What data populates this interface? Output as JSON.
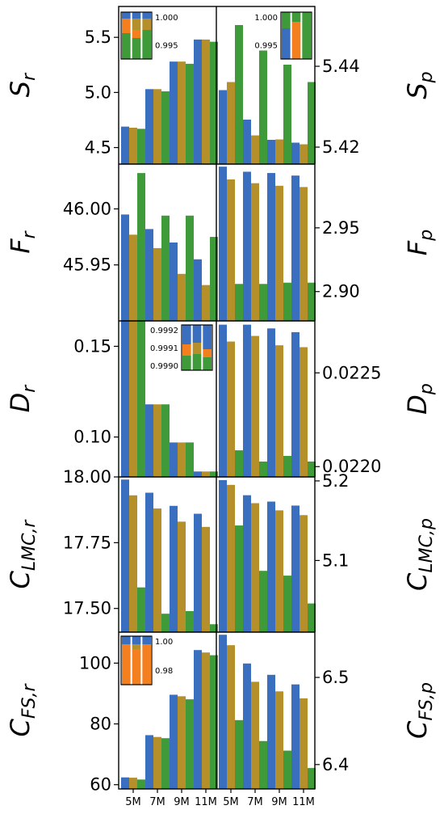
{
  "colors": {
    "blue": "#3a6fbf",
    "orange": "#f37f1f",
    "green": "#3f9a3a",
    "olive": "#b5902a"
  },
  "chart_data": {
    "type": "bar",
    "categories": [
      "5M",
      "7M",
      "9M",
      "11M"
    ],
    "rows": [
      {
        "left": {
          "label": "S_r",
          "ylim": [
            4.35,
            5.78
          ],
          "ticks": [
            "4.5",
            "5.0",
            "5.5"
          ],
          "tick_values": [
            4.5,
            5.0,
            5.5
          ],
          "values": [
            [
              4.69,
              4.68,
              4.67
            ],
            [
              5.03,
              5.03,
              5.01
            ],
            [
              5.28,
              5.28,
              5.26
            ],
            [
              5.48,
              5.48,
              5.46
            ]
          ],
          "inset": {
            "ticks": [
              "1.000",
              "0.995"
            ],
            "bars": [
              [
                "#3a6fbf",
                "#f37f1f",
                "#3f9a3a"
              ],
              [
                "#3a6fbf",
                "#f37f1f",
                "#3f9a3a"
              ],
              [
                "#3a6fbf",
                "#f37f1f",
                "#3f9a3a"
              ]
            ]
          }
        },
        "right": {
          "label": "S_p",
          "ylim": [
            5.4158,
            5.4548
          ],
          "ticks": [
            "5.42",
            "5.44"
          ],
          "tick_values": [
            5.42,
            5.44
          ],
          "values": [
            [
              5.4341,
              5.4361,
              5.4502
            ],
            [
              5.4268,
              5.4229,
              5.4439
            ],
            [
              5.4218,
              5.4219,
              5.4404
            ],
            [
              5.4211,
              5.4207,
              5.4361
            ]
          ],
          "inset": {
            "ticks": [
              "1.000",
              "0.995"
            ]
          }
        }
      },
      {
        "left": {
          "label": "F_r",
          "ylim": [
            45.9,
            46.04
          ],
          "ticks": [
            "45.95",
            "46.00"
          ],
          "tick_values": [
            45.95,
            46.0
          ],
          "values": [
            [
              45.995,
              45.977,
              46.032
            ],
            [
              45.982,
              45.965,
              45.994
            ],
            [
              45.97,
              45.942,
              45.994
            ],
            [
              45.955,
              45.932,
              45.975
            ]
          ]
        },
        "right": {
          "label": "F_p",
          "ylim": [
            2.877,
            3.0
          ],
          "ticks": [
            "2.90",
            "2.95"
          ],
          "tick_values": [
            2.9,
            2.95
          ],
          "values": [
            [
              2.998,
              2.988,
              2.906
            ],
            [
              2.994,
              2.985,
              2.906
            ],
            [
              2.993,
              2.983,
              2.907
            ],
            [
              2.991,
              2.982,
              2.907
            ]
          ]
        }
      },
      {
        "left": {
          "label": "D_r",
          "ylim": [
            0.078,
            0.164
          ],
          "ticks": [
            "0.10",
            "0.15"
          ],
          "tick_values": [
            0.1,
            0.15
          ],
          "values": [
            [
              0.164,
              0.164,
              0.164
            ],
            [
              0.118,
              0.118,
              0.118
            ],
            [
              0.097,
              0.097,
              0.097
            ],
            [
              0.081,
              0.081,
              0.081
            ]
          ],
          "inset": {
            "ticks": [
              "0.9992",
              "0.9991",
              "0.9990"
            ]
          }
        },
        "right": {
          "label": "D_p",
          "ylim": [
            0.021945,
            0.022777
          ],
          "ticks": [
            "0.0220",
            "0.0225"
          ],
          "tick_values": [
            0.022,
            0.0225
          ],
          "values": [
            [
              0.022757,
              0.022667,
              0.022087
            ],
            [
              0.022757,
              0.022697,
              0.022027
            ],
            [
              0.022737,
              0.022647,
              0.022057
            ],
            [
              0.022717,
              0.022637,
              0.022027
            ]
          ]
        }
      },
      {
        "left": {
          "label": "C_{LMC,r}",
          "ylim": [
            17.41,
            18.0
          ],
          "ticks": [
            "17.50",
            "17.75",
            "18.00"
          ],
          "tick_values": [
            17.5,
            17.75,
            18.0
          ],
          "values": [
            [
              17.99,
              17.93,
              17.58
            ],
            [
              17.94,
              17.88,
              17.48
            ],
            [
              17.89,
              17.83,
              17.49
            ],
            [
              17.86,
              17.81,
              17.44
            ]
          ]
        },
        "right": {
          "label": "C_{LMC,p}",
          "ylim": [
            5.01,
            5.205
          ],
          "ticks": [
            "5.1",
            "5.2"
          ],
          "tick_values": [
            5.1,
            5.2
          ],
          "values": [
            [
              5.201,
              5.195,
              5.144
            ],
            [
              5.182,
              5.172,
              5.087
            ],
            [
              5.174,
              5.163,
              5.081
            ],
            [
              5.169,
              5.157,
              5.046
            ]
          ]
        }
      },
      {
        "left": {
          "label": "C_{FS,r}",
          "ylim": [
            58.6,
            110.2
          ],
          "ticks": [
            "60",
            "80",
            "100"
          ],
          "tick_values": [
            60,
            80,
            100
          ],
          "values": [
            [
              62.4,
              62.3,
              61.7
            ],
            [
              76.3,
              75.7,
              75.3
            ],
            [
              89.6,
              89.1,
              88.1
            ],
            [
              104.3,
              103.5,
              102.6
            ]
          ],
          "inset": {
            "ticks": [
              "1.00",
              "0.98"
            ]
          }
        },
        "right": {
          "label": "C_{FS,p}",
          "ylim": [
            6.372,
            6.552
          ],
          "ticks": [
            "6.4",
            "6.5"
          ],
          "tick_values": [
            6.4,
            6.5
          ],
          "values": [
            [
              6.549,
              6.537,
              6.451
            ],
            [
              6.516,
              6.495,
              6.427
            ],
            [
              6.503,
              6.484,
              6.416
            ],
            [
              6.492,
              6.476,
              6.396
            ]
          ]
        }
      }
    ]
  }
}
